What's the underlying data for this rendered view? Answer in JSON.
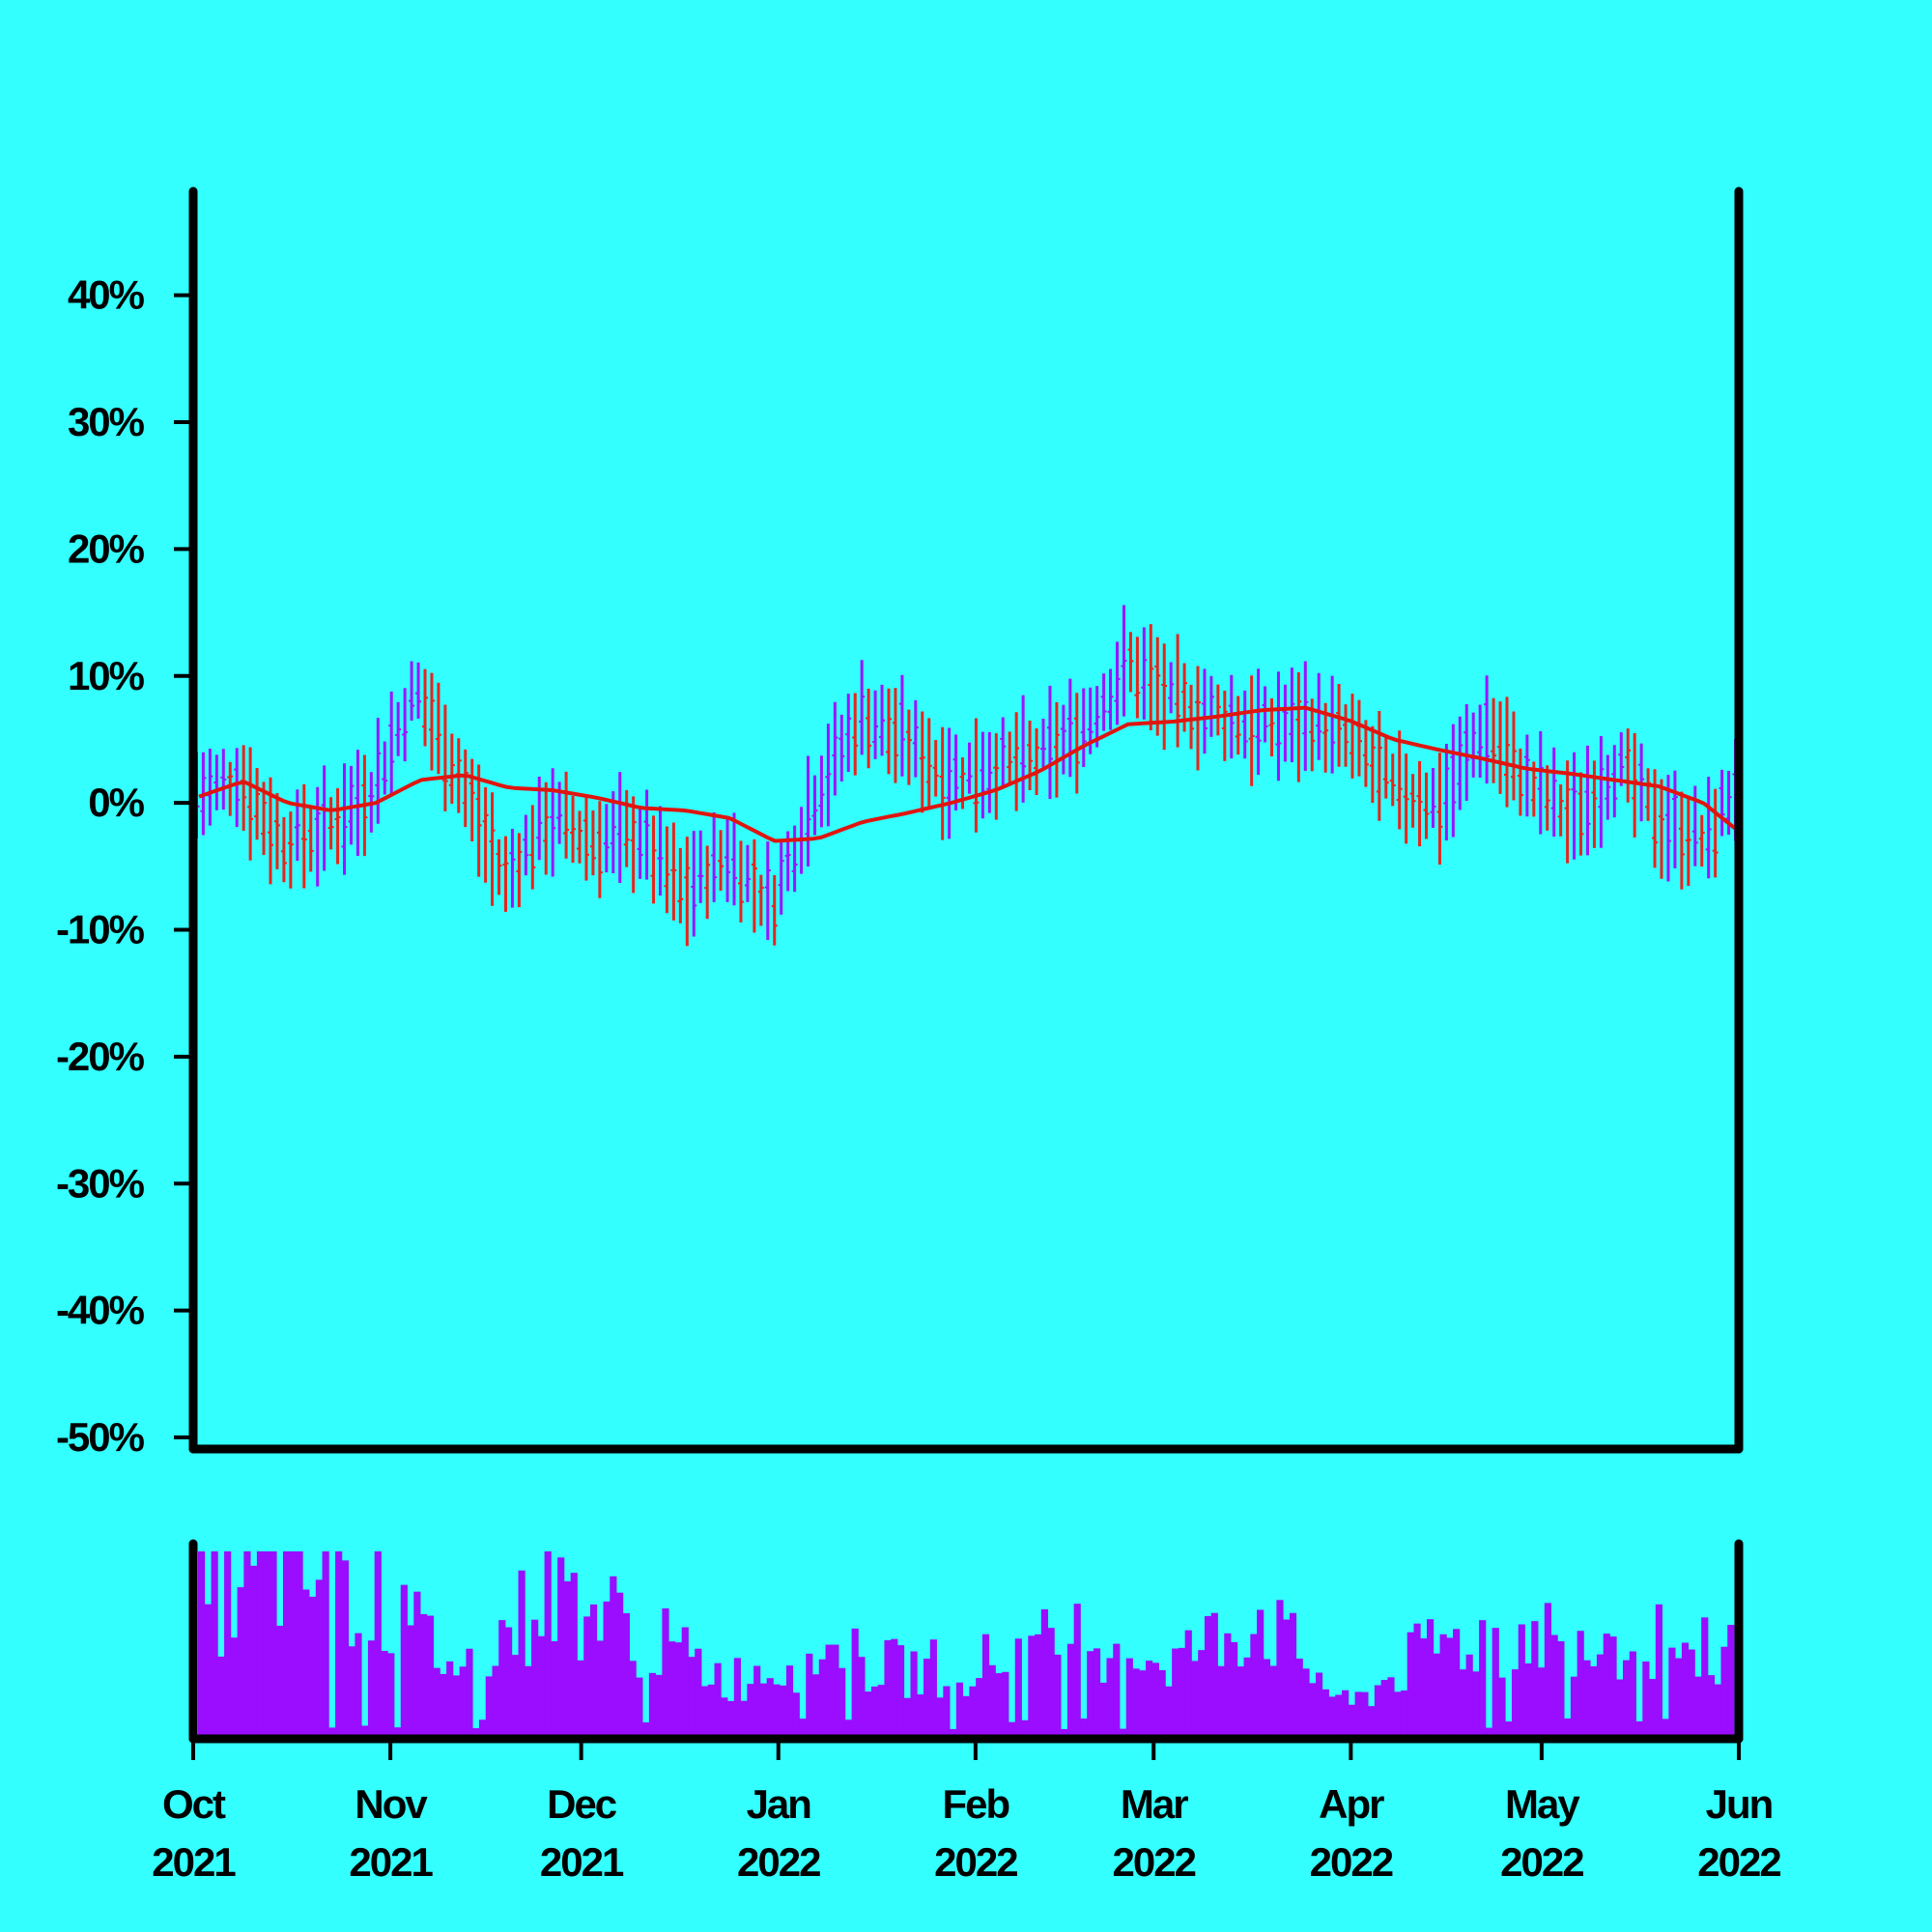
{
  "colors": {
    "background": "#33ffff",
    "axis": "#000000",
    "up_bar": "#9a15ff",
    "down_bar": "#e6251c",
    "moving_average": "#e0150f",
    "volume": "#9a0dff"
  },
  "chart_data": [
    {
      "type": "ohlc",
      "title": "",
      "xlabel": "",
      "ylabel": "",
      "grid": false,
      "ylim": [
        -50,
        45
      ],
      "yticks": [
        40,
        30,
        20,
        10,
        0,
        -10,
        -20,
        -30,
        -40,
        -50
      ],
      "ytick_labels": [
        "40%",
        "30%",
        "20%",
        "10%",
        "0%",
        "-10%",
        "-20%",
        "-30%",
        "-40%",
        "-50%"
      ],
      "x_range": [
        "2021-10-01",
        "2022-06-01"
      ],
      "series": [
        {
          "kind": "price_bars",
          "values": [
            {
              "date": "2021-10-01",
              "value": 0.5
            },
            {
              "date": "2021-10-08",
              "value": 2.0
            },
            {
              "date": "2021-10-15",
              "value": -3.0
            },
            {
              "date": "2021-10-22",
              "value": -2.0
            },
            {
              "date": "2021-10-29",
              "value": 1.0
            },
            {
              "date": "2021-11-05",
              "value": 9.0
            },
            {
              "date": "2021-11-12",
              "value": 2.0
            },
            {
              "date": "2021-11-19",
              "value": -6.0
            },
            {
              "date": "2021-11-26",
              "value": -1.0
            },
            {
              "date": "2021-12-03",
              "value": -3.0
            },
            {
              "date": "2021-12-10",
              "value": -2.5
            },
            {
              "date": "2021-12-17",
              "value": -7.0
            },
            {
              "date": "2021-12-24",
              "value": -4.0
            },
            {
              "date": "2021-12-31",
              "value": -8.0
            },
            {
              "date": "2022-01-07",
              "value": 1.0
            },
            {
              "date": "2022-01-14",
              "value": 7.0
            },
            {
              "date": "2022-01-21",
              "value": 5.0
            },
            {
              "date": "2022-01-28",
              "value": 2.0
            },
            {
              "date": "2022-02-04",
              "value": 3.0
            },
            {
              "date": "2022-02-11",
              "value": 3.5
            },
            {
              "date": "2022-02-18",
              "value": 6.0
            },
            {
              "date": "2022-02-25",
              "value": 11.0
            },
            {
              "date": "2022-03-04",
              "value": 8.0
            },
            {
              "date": "2022-03-11",
              "value": 7.0
            },
            {
              "date": "2022-03-18",
              "value": 6.0
            },
            {
              "date": "2022-03-25",
              "value": 6.5
            },
            {
              "date": "2022-04-01",
              "value": 5.0
            },
            {
              "date": "2022-04-08",
              "value": 1.0
            },
            {
              "date": "2022-04-15",
              "value": 0.0
            },
            {
              "date": "2022-04-22",
              "value": 6.0
            },
            {
              "date": "2022-04-29",
              "value": 1.5
            },
            {
              "date": "2022-05-06",
              "value": -1.0
            },
            {
              "date": "2022-05-13",
              "value": 3.0
            },
            {
              "date": "2022-05-20",
              "value": -1.5
            },
            {
              "date": "2022-05-27",
              "value": -3.0
            },
            {
              "date": "2022-06-01",
              "value": 2.0
            }
          ]
        },
        {
          "kind": "moving_average",
          "values": [
            {
              "date": "2021-10-01",
              "value": 0.5
            },
            {
              "date": "2021-10-08",
              "value": 1.7
            },
            {
              "date": "2021-10-15",
              "value": 0.0
            },
            {
              "date": "2021-10-22",
              "value": -0.6
            },
            {
              "date": "2021-10-29",
              "value": 0.0
            },
            {
              "date": "2021-11-05",
              "value": 1.8
            },
            {
              "date": "2021-11-12",
              "value": 2.2
            },
            {
              "date": "2021-11-19",
              "value": 1.2
            },
            {
              "date": "2021-11-26",
              "value": 1.0
            },
            {
              "date": "2021-12-03",
              "value": 0.4
            },
            {
              "date": "2021-12-10",
              "value": -0.4
            },
            {
              "date": "2021-12-17",
              "value": -0.6
            },
            {
              "date": "2021-12-24",
              "value": -1.2
            },
            {
              "date": "2021-12-31",
              "value": -3.0
            },
            {
              "date": "2022-01-07",
              "value": -2.8
            },
            {
              "date": "2022-01-14",
              "value": -1.5
            },
            {
              "date": "2022-01-21",
              "value": -0.8
            },
            {
              "date": "2022-01-28",
              "value": 0.0
            },
            {
              "date": "2022-02-04",
              "value": 1.0
            },
            {
              "date": "2022-02-11",
              "value": 2.5
            },
            {
              "date": "2022-02-18",
              "value": 4.5
            },
            {
              "date": "2022-02-25",
              "value": 6.2
            },
            {
              "date": "2022-03-04",
              "value": 6.4
            },
            {
              "date": "2022-03-11",
              "value": 6.8
            },
            {
              "date": "2022-03-18",
              "value": 7.3
            },
            {
              "date": "2022-03-25",
              "value": 7.5
            },
            {
              "date": "2022-04-01",
              "value": 6.5
            },
            {
              "date": "2022-04-08",
              "value": 5.0
            },
            {
              "date": "2022-04-15",
              "value": 4.2
            },
            {
              "date": "2022-04-22",
              "value": 3.5
            },
            {
              "date": "2022-04-29",
              "value": 2.7
            },
            {
              "date": "2022-05-06",
              "value": 2.3
            },
            {
              "date": "2022-05-13",
              "value": 1.8
            },
            {
              "date": "2022-05-20",
              "value": 1.3
            },
            {
              "date": "2022-05-27",
              "value": 0.0
            },
            {
              "date": "2022-06-01",
              "value": -2.0
            }
          ]
        }
      ]
    },
    {
      "type": "bar",
      "title": "",
      "xlabel": "",
      "ylabel": "",
      "x_ticks": [
        {
          "date": "2021-10-01",
          "month": "Oct",
          "year": "2021"
        },
        {
          "date": "2021-11-01",
          "month": "Nov",
          "year": "2021"
        },
        {
          "date": "2021-12-01",
          "month": "Dec",
          "year": "2021"
        },
        {
          "date": "2022-01-01",
          "month": "Jan",
          "year": "2022"
        },
        {
          "date": "2022-02-01",
          "month": "Feb",
          "year": "2022"
        },
        {
          "date": "2022-03-01",
          "month": "Mar",
          "year": "2022"
        },
        {
          "date": "2022-04-01",
          "month": "Apr",
          "year": "2022"
        },
        {
          "date": "2022-05-01",
          "month": "May",
          "year": "2022"
        },
        {
          "date": "2022-06-01",
          "month": "Jun",
          "year": "2022"
        }
      ],
      "series": [
        {
          "kind": "volume",
          "values": [
            {
              "date": "2021-10-01",
              "value": 0.7
            },
            {
              "date": "2021-10-15",
              "value": 0.9
            },
            {
              "date": "2021-10-29",
              "value": 0.75
            },
            {
              "date": "2021-11-12",
              "value": 0.35
            },
            {
              "date": "2021-11-26",
              "value": 0.8
            },
            {
              "date": "2021-12-10",
              "value": 0.55
            },
            {
              "date": "2021-12-24",
              "value": 0.3
            },
            {
              "date": "2022-01-07",
              "value": 0.45
            },
            {
              "date": "2022-01-21",
              "value": 0.35
            },
            {
              "date": "2022-02-04",
              "value": 0.4
            },
            {
              "date": "2022-02-18",
              "value": 0.55
            },
            {
              "date": "2022-03-04",
              "value": 0.4
            },
            {
              "date": "2022-03-18",
              "value": 0.65
            },
            {
              "date": "2022-04-01",
              "value": 0.15
            },
            {
              "date": "2022-04-15",
              "value": 0.5
            },
            {
              "date": "2022-04-29",
              "value": 0.55
            },
            {
              "date": "2022-05-13",
              "value": 0.55
            },
            {
              "date": "2022-05-27",
              "value": 0.45
            }
          ]
        }
      ]
    }
  ]
}
